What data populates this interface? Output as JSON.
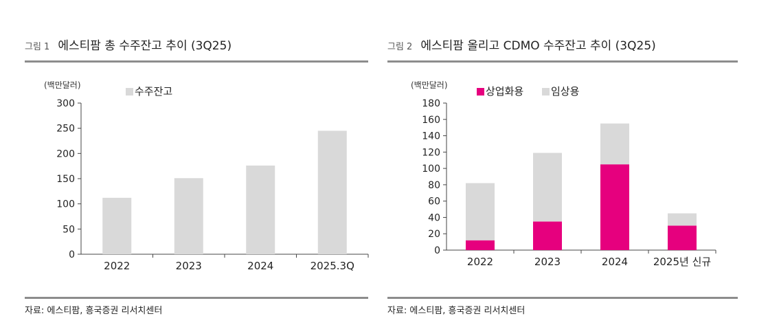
{
  "charts": [
    {
      "figure_label": "그림 1",
      "title": "에스티팜 총 수주잔고 추이 (3Q25)",
      "source": "자료: 에스티팜, 흥국증권 리서치센터"
    },
    {
      "figure_label": "그림 2",
      "title": "에스티팜 올리고 CDMO 수주잔고 추이 (3Q25)",
      "source": "자료: 에스티팜, 흥국증권 리서치센터"
    }
  ],
  "chart_data": [
    {
      "type": "bar",
      "title": "에스티팜 총 수주잔고 추이 (3Q25)",
      "unit_label": "(백만달러)",
      "categories": [
        "2022",
        "2023",
        "2024",
        "2025.3Q"
      ],
      "series": [
        {
          "name": "수주잔고",
          "color": "#d9d9d9",
          "values": [
            112,
            151,
            176,
            245
          ]
        }
      ],
      "ylim": [
        0,
        300
      ],
      "yticks": [
        0,
        50,
        100,
        150,
        200,
        250,
        300
      ],
      "legend": "top-left"
    },
    {
      "type": "bar",
      "stacked": true,
      "title": "에스티팜 올리고 CDMO 수주잔고 추이 (3Q25)",
      "unit_label": "(백만달러)",
      "categories": [
        "2022",
        "2023",
        "2024",
        "2025년 신규"
      ],
      "series": [
        {
          "name": "상업화용",
          "color": "#e6007e",
          "values": [
            12,
            35,
            105,
            30
          ]
        },
        {
          "name": "임상용",
          "color": "#d9d9d9",
          "values": [
            70,
            84,
            50,
            15
          ]
        }
      ],
      "ylim": [
        0,
        180
      ],
      "yticks": [
        0,
        20,
        40,
        60,
        80,
        100,
        120,
        140,
        160,
        180
      ],
      "legend": "top-left"
    }
  ]
}
